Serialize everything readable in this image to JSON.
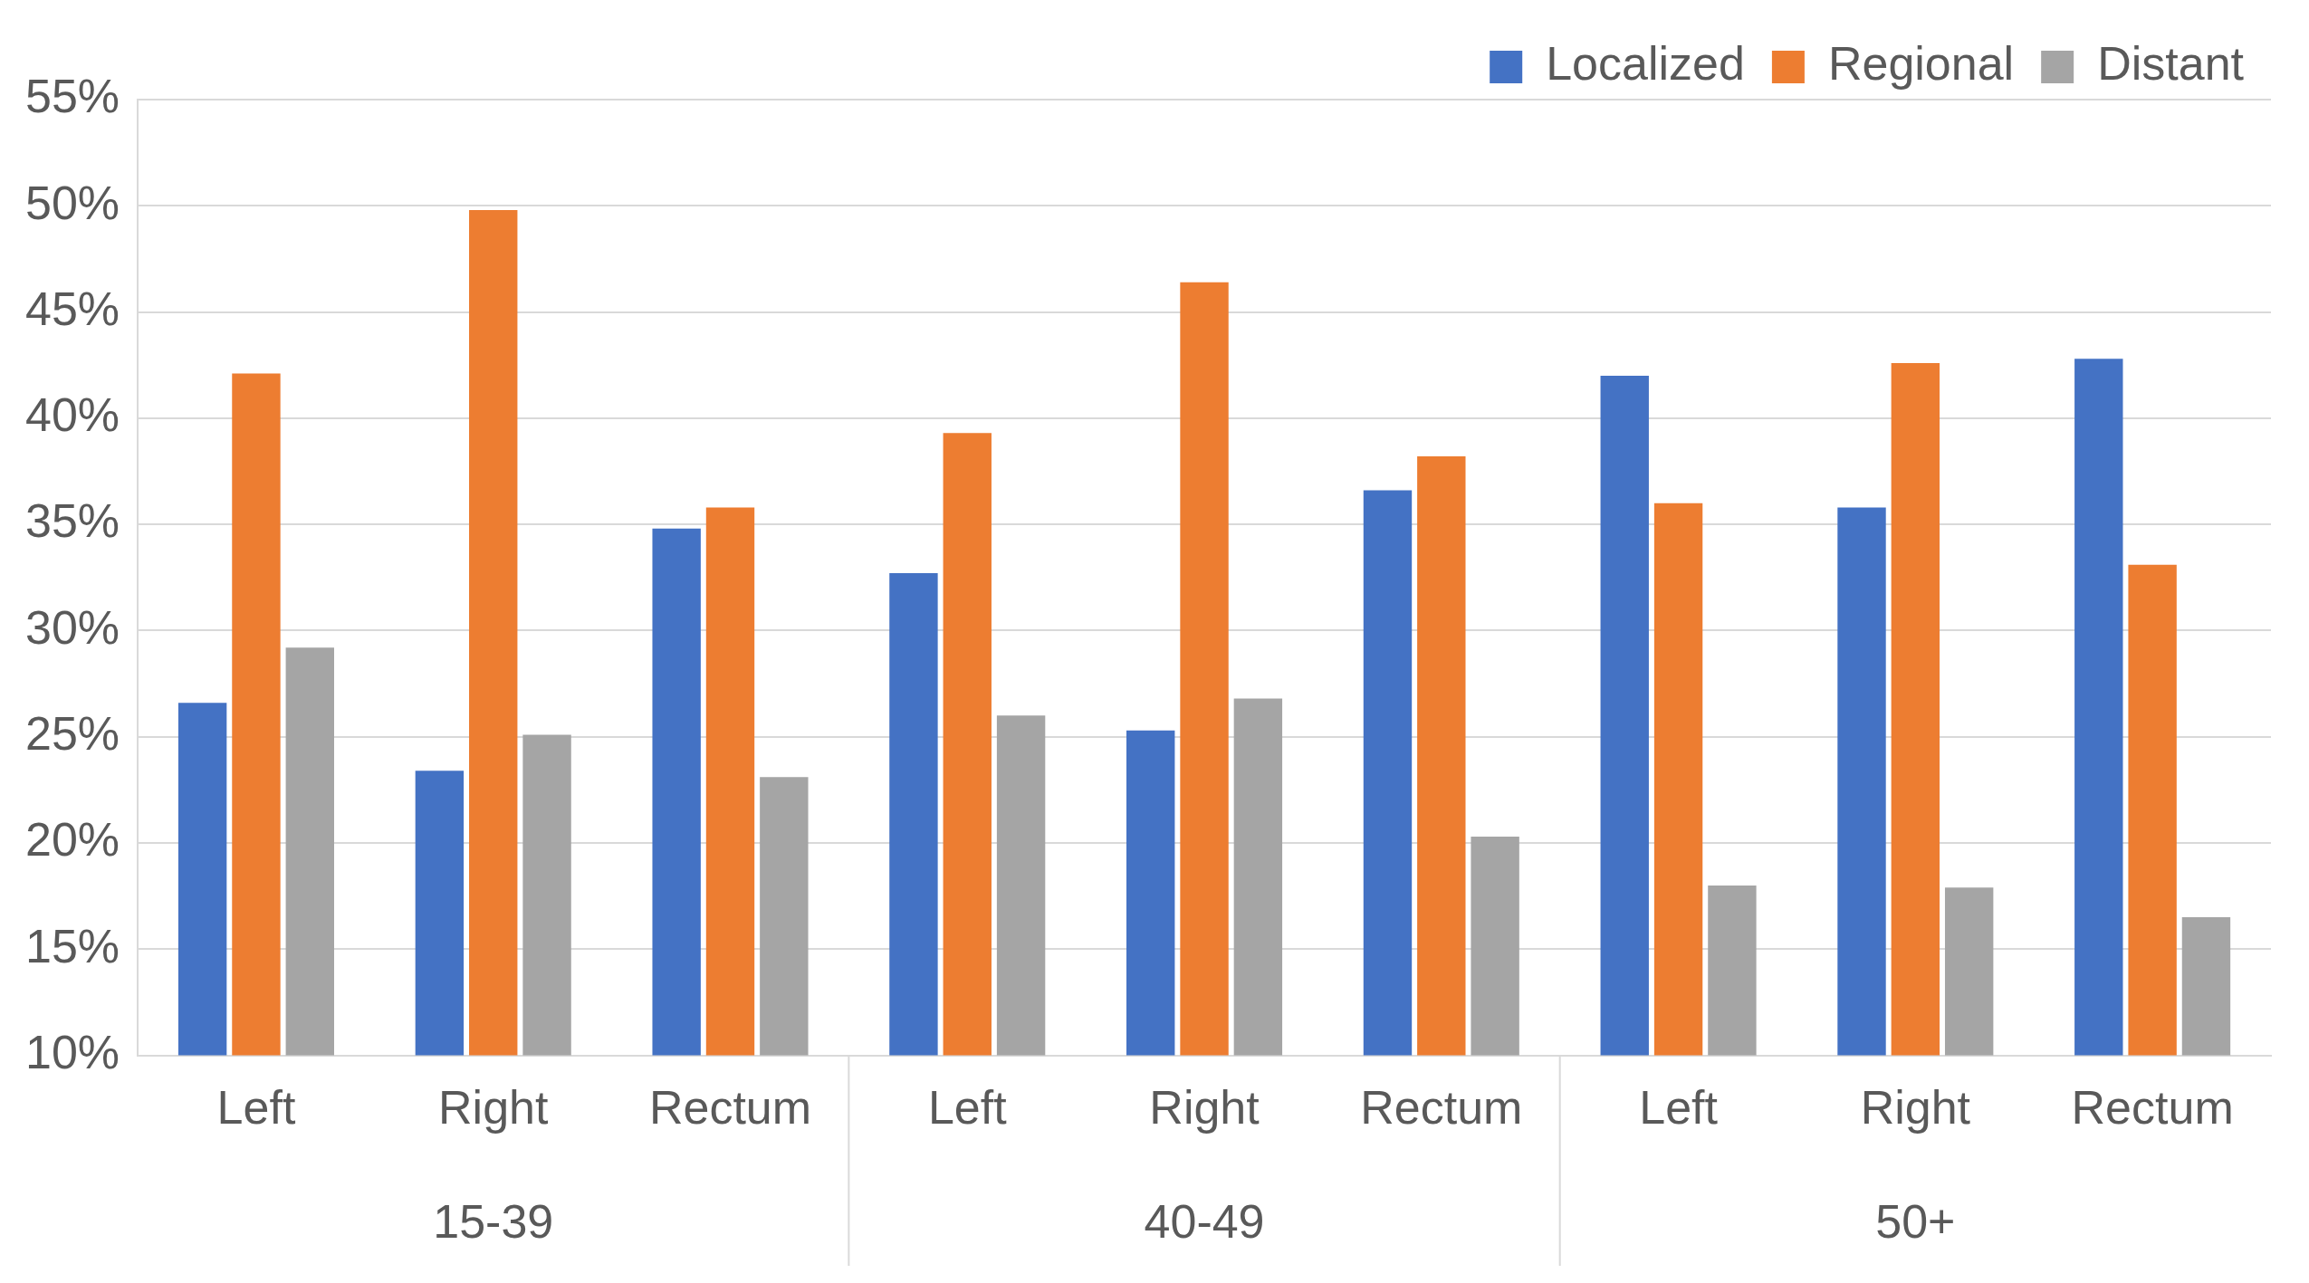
{
  "chart_data": {
    "type": "bar",
    "categories": [
      "Left",
      "Right",
      "Rectum",
      "Left",
      "Right",
      "Rectum",
      "Left",
      "Right",
      "Rectum"
    ],
    "series": [
      {
        "name": "Localized",
        "color": "#4472c4",
        "values": [
          26.6,
          23.4,
          34.8,
          32.7,
          25.3,
          36.6,
          42.0,
          35.8,
          42.8
        ]
      },
      {
        "name": "Regional",
        "color": "#ed7d31",
        "values": [
          42.1,
          49.8,
          35.8,
          39.3,
          46.4,
          38.2,
          36.0,
          42.6,
          33.1
        ]
      },
      {
        "name": "Distant",
        "color": "#a5a5a5",
        "values": [
          29.2,
          25.1,
          23.1,
          26.0,
          26.8,
          20.3,
          18.0,
          17.9,
          16.5
        ]
      }
    ],
    "annotations": [
      "15-39",
      "40-49",
      "50+"
    ],
    "ylim": [
      10,
      55
    ],
    "yticks": [
      {
        "value": 10,
        "label": "10%"
      },
      {
        "value": 15,
        "label": "15%"
      },
      {
        "value": 20,
        "label": "20%"
      },
      {
        "value": 25,
        "label": "25%"
      },
      {
        "value": 30,
        "label": "30%"
      },
      {
        "value": 35,
        "label": "35%"
      },
      {
        "value": 40,
        "label": "40%"
      },
      {
        "value": 45,
        "label": "45%"
      },
      {
        "value": 50,
        "label": "50%"
      },
      {
        "value": 55,
        "label": "55%"
      }
    ],
    "grid": "y",
    "legend": "top right"
  }
}
